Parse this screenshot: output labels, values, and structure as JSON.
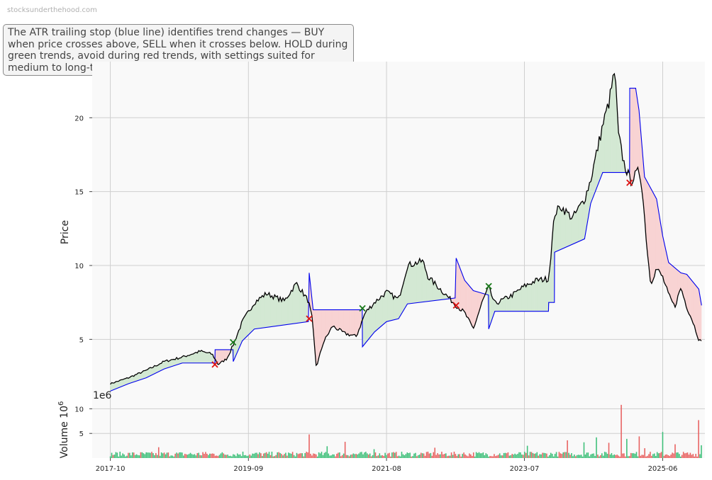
{
  "page": {
    "watermark": "stocksunderthehood.com"
  },
  "annotation": "The ATR trailing stop (blue line) identifies trend changes — BUY when price crosses above, SELL when it crosses below. HOLD during green trends, avoid during red trends, with settings suited for medium to long-term investors.",
  "colors": {
    "price": "#000000",
    "stop": "#0000ee",
    "fill_up": "#d3e8d3",
    "fill_down": "#f8d3d3",
    "buy": "#1a7a1a",
    "sell": "#dd1111",
    "vol_up": "#3cbf78",
    "vol_down": "#e8605f",
    "grid": "#cfcfcf",
    "panel_bg": "#f9f9f9"
  },
  "chart_data": [
    {
      "type": "line",
      "panel": "price",
      "ylabel": "Price",
      "ylim": [
        0.8,
        23.8
      ],
      "xlim": [
        "2017-07-01",
        "2026-01-01"
      ],
      "yticks": [
        5,
        10,
        15,
        20
      ],
      "grid": true,
      "x_ticks": [
        "2017-10",
        "2019-09",
        "2021-08",
        "2023-07",
        "2025-06"
      ],
      "price_points": [
        [
          "2017-10-01",
          2.0
        ],
        [
          "2018-01-01",
          2.4
        ],
        [
          "2018-04-01",
          2.9
        ],
        [
          "2018-07-01",
          3.5
        ],
        [
          "2018-10-01",
          3.8
        ],
        [
          "2019-01-01",
          4.2
        ],
        [
          "2019-03-01",
          4.0
        ],
        [
          "2019-04-01",
          3.3
        ],
        [
          "2019-05-15",
          3.7
        ],
        [
          "2019-06-15",
          4.6
        ],
        [
          "2019-08-01",
          6.2
        ],
        [
          "2019-10-01",
          7.5
        ],
        [
          "2019-12-01",
          8.1
        ],
        [
          "2020-03-01",
          7.6
        ],
        [
          "2020-05-01",
          8.8
        ],
        [
          "2020-07-01",
          7.6
        ],
        [
          "2020-07-20",
          6.4
        ],
        [
          "2020-08-10",
          3.1
        ],
        [
          "2020-09-15",
          4.8
        ],
        [
          "2020-11-01",
          5.9
        ],
        [
          "2021-01-01",
          5.4
        ],
        [
          "2021-03-01",
          5.2
        ],
        [
          "2021-04-15",
          6.8
        ],
        [
          "2021-06-01",
          7.5
        ],
        [
          "2021-08-01",
          8.2
        ],
        [
          "2021-10-01",
          7.7
        ],
        [
          "2021-11-15",
          10.0
        ],
        [
          "2022-02-01",
          10.3
        ],
        [
          "2022-03-01",
          9.2
        ],
        [
          "2022-05-01",
          8.4
        ],
        [
          "2022-07-20",
          7.3
        ],
        [
          "2022-09-01",
          6.8
        ],
        [
          "2022-10-15",
          5.7
        ],
        [
          "2022-12-01",
          7.6
        ],
        [
          "2023-01-01",
          8.5
        ],
        [
          "2023-02-01",
          7.4
        ],
        [
          "2023-05-01",
          8.0
        ],
        [
          "2023-07-01",
          8.6
        ],
        [
          "2023-09-01",
          9.0
        ],
        [
          "2023-11-01",
          9.1
        ],
        [
          "2023-12-01",
          13.5
        ],
        [
          "2024-01-01",
          14.0
        ],
        [
          "2024-03-01",
          13.2
        ],
        [
          "2024-05-01",
          14.5
        ],
        [
          "2024-06-01",
          15.8
        ],
        [
          "2024-08-01",
          19.5
        ],
        [
          "2024-09-01",
          21.0
        ],
        [
          "2024-10-01",
          23.2
        ],
        [
          "2024-10-20",
          18.8
        ],
        [
          "2024-11-15",
          17.0
        ],
        [
          "2024-12-20",
          15.7
        ],
        [
          "2025-02-01",
          16.4
        ],
        [
          "2025-02-15",
          15.5
        ],
        [
          "2025-03-15",
          11.0
        ],
        [
          "2025-04-01",
          8.8
        ],
        [
          "2025-05-01",
          9.8
        ],
        [
          "2025-06-01",
          9.2
        ],
        [
          "2025-07-01",
          8.0
        ],
        [
          "2025-08-01",
          7.2
        ],
        [
          "2025-09-01",
          8.5
        ],
        [
          "2025-10-01",
          7.2
        ],
        [
          "2025-11-01",
          6.2
        ],
        [
          "2025-12-01",
          5.0
        ],
        [
          "2025-12-15",
          4.8
        ]
      ],
      "stop_points": [
        [
          "2017-10-01",
          1.5
        ],
        [
          "2018-01-01",
          2.0
        ],
        [
          "2018-04-01",
          2.4
        ],
        [
          "2018-07-01",
          3.0
        ],
        [
          "2018-10-01",
          3.4
        ],
        [
          "2019-03-15",
          3.4
        ],
        [
          "2019-03-16",
          4.3
        ],
        [
          "2019-06-15",
          4.3
        ],
        [
          "2019-06-16",
          3.5
        ],
        [
          "2019-08-01",
          4.9
        ],
        [
          "2019-10-01",
          5.7
        ],
        [
          "2020-07-01",
          6.2
        ],
        [
          "2020-07-05",
          9.5
        ],
        [
          "2020-07-25",
          7.0
        ],
        [
          "2021-03-31",
          7.0
        ],
        [
          "2021-04-01",
          4.5
        ],
        [
          "2021-06-01",
          5.5
        ],
        [
          "2021-08-01",
          6.2
        ],
        [
          "2021-10-01",
          6.4
        ],
        [
          "2021-11-15",
          7.4
        ],
        [
          "2022-07-15",
          7.8
        ],
        [
          "2022-07-20",
          10.5
        ],
        [
          "2022-09-01",
          9.0
        ],
        [
          "2022-10-15",
          8.3
        ],
        [
          "2022-12-31",
          8.0
        ],
        [
          "2023-01-01",
          5.7
        ],
        [
          "2023-02-01",
          6.9
        ],
        [
          "2023-10-31",
          6.9
        ],
        [
          "2023-11-01",
          7.5
        ],
        [
          "2023-11-30",
          7.5
        ],
        [
          "2023-12-01",
          10.9
        ],
        [
          "2024-05-01",
          11.8
        ],
        [
          "2024-06-01",
          14.2
        ],
        [
          "2024-08-01",
          16.3
        ],
        [
          "2024-12-15",
          16.3
        ],
        [
          "2024-12-16",
          22.0
        ],
        [
          "2025-01-15",
          22.0
        ],
        [
          "2025-02-01",
          20.5
        ],
        [
          "2025-03-01",
          16.0
        ],
        [
          "2025-05-01",
          14.5
        ],
        [
          "2025-06-01",
          12.0
        ],
        [
          "2025-07-01",
          10.2
        ],
        [
          "2025-09-01",
          9.5
        ],
        [
          "2025-10-01",
          9.4
        ],
        [
          "2025-12-01",
          8.4
        ],
        [
          "2025-12-15",
          7.3
        ]
      ],
      "buy_signals": [
        [
          "2019-06-15",
          4.8
        ],
        [
          "2021-04-01",
          7.1
        ],
        [
          "2023-01-01",
          8.6
        ]
      ],
      "sell_signals": [
        [
          "2019-03-15",
          3.3
        ],
        [
          "2020-07-05",
          6.4
        ],
        [
          "2022-07-20",
          7.3
        ],
        [
          "2024-12-15",
          15.6
        ]
      ]
    },
    {
      "type": "bar",
      "panel": "volume",
      "ylabel": "Volume",
      "ylabel_unit_exponent": "6",
      "offset_label": "1e6",
      "ylim": [
        0,
        11.5
      ],
      "yticks": [
        5,
        10
      ],
      "grid": true,
      "baseline_range": [
        0.3,
        1.3
      ],
      "spikes": [
        [
          "2018-06-01",
          2.2,
          "down"
        ],
        [
          "2019-01-15",
          1.2,
          "down"
        ],
        [
          "2019-08-01",
          1.3,
          "up"
        ],
        [
          "2020-07-05",
          4.8,
          "down"
        ],
        [
          "2020-10-01",
          2.4,
          "up"
        ],
        [
          "2021-01-01",
          3.3,
          "down"
        ],
        [
          "2021-06-01",
          1.8,
          "up"
        ],
        [
          "2022-04-01",
          2.1,
          "down"
        ],
        [
          "2023-07-15",
          2.5,
          "up"
        ],
        [
          "2024-02-01",
          3.6,
          "down"
        ],
        [
          "2024-05-01",
          3.2,
          "up"
        ],
        [
          "2024-07-01",
          4.2,
          "up"
        ],
        [
          "2024-09-01",
          3.1,
          "down"
        ],
        [
          "2024-11-01",
          10.8,
          "down"
        ],
        [
          "2024-12-01",
          3.9,
          "up"
        ],
        [
          "2025-02-01",
          4.4,
          "down"
        ],
        [
          "2025-03-01",
          2.0,
          "down"
        ],
        [
          "2025-06-01",
          5.3,
          "up"
        ],
        [
          "2025-08-01",
          2.8,
          "down"
        ],
        [
          "2025-12-01",
          7.7,
          "down"
        ],
        [
          "2025-12-15",
          2.6,
          "up"
        ]
      ]
    }
  ]
}
